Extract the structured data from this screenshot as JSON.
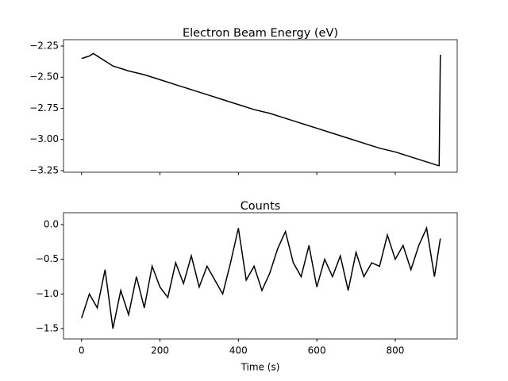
{
  "chart_data": [
    {
      "type": "line",
      "title": "Electron Beam Energy (eV)",
      "color": "#000000",
      "x": [
        0,
        10,
        20,
        30,
        40,
        80,
        120,
        160,
        200,
        240,
        280,
        320,
        360,
        400,
        440,
        480,
        520,
        560,
        600,
        640,
        680,
        720,
        760,
        800,
        840,
        880,
        910,
        912,
        915
      ],
      "values": [
        -2.35,
        -2.34,
        -2.33,
        -2.31,
        -2.33,
        -2.41,
        -2.45,
        -2.48,
        -2.52,
        -2.56,
        -2.6,
        -2.64,
        -2.68,
        -2.72,
        -2.76,
        -2.79,
        -2.83,
        -2.87,
        -2.91,
        -2.95,
        -2.99,
        -3.03,
        -3.07,
        -3.1,
        -3.14,
        -3.18,
        -3.21,
        -3.21,
        -2.32
      ],
      "xlim": [
        -46,
        958
      ],
      "ylim": [
        -3.263,
        -2.199
      ],
      "yticks": [
        {
          "value": -2.25,
          "label": "−2.25"
        },
        {
          "value": -2.5,
          "label": "−2.50"
        },
        {
          "value": -2.75,
          "label": "−2.75"
        },
        {
          "value": -3,
          "label": "−3.00"
        },
        {
          "value": -3.25,
          "label": "−3.25"
        }
      ]
    },
    {
      "type": "line",
      "title": "Counts",
      "x_label": "Time (s)",
      "color": "#000000",
      "x": [
        0,
        20,
        40,
        60,
        80,
        100,
        120,
        140,
        160,
        180,
        200,
        220,
        240,
        260,
        280,
        300,
        320,
        340,
        360,
        380,
        400,
        420,
        440,
        460,
        480,
        500,
        520,
        540,
        560,
        580,
        600,
        620,
        640,
        660,
        680,
        700,
        720,
        740,
        760,
        780,
        800,
        820,
        840,
        860,
        880,
        900,
        915
      ],
      "values": [
        -1.35,
        -1.0,
        -1.2,
        -0.65,
        -1.5,
        -0.95,
        -1.3,
        -0.75,
        -1.2,
        -0.6,
        -0.9,
        -1.05,
        -0.55,
        -0.85,
        -0.45,
        -0.9,
        -0.6,
        -0.8,
        -1.0,
        -0.55,
        -0.05,
        -0.8,
        -0.6,
        -0.95,
        -0.7,
        -0.35,
        -0.1,
        -0.55,
        -0.75,
        -0.3,
        -0.9,
        -0.5,
        -0.75,
        -0.45,
        -0.95,
        -0.4,
        -0.75,
        -0.55,
        -0.6,
        -0.15,
        -0.5,
        -0.3,
        -0.65,
        -0.3,
        -0.05,
        -0.75,
        -0.2
      ],
      "xlim": [
        -46,
        958
      ],
      "ylim": [
        -1.649,
        0.172
      ],
      "xticks": [
        0,
        200,
        400,
        600,
        800
      ],
      "yticks": [
        {
          "value": 0,
          "label": "0.0"
        },
        {
          "value": -0.5,
          "label": "−0.5"
        },
        {
          "value": -1,
          "label": "−1.0"
        },
        {
          "value": -1.5,
          "label": "−1.5"
        }
      ]
    }
  ]
}
